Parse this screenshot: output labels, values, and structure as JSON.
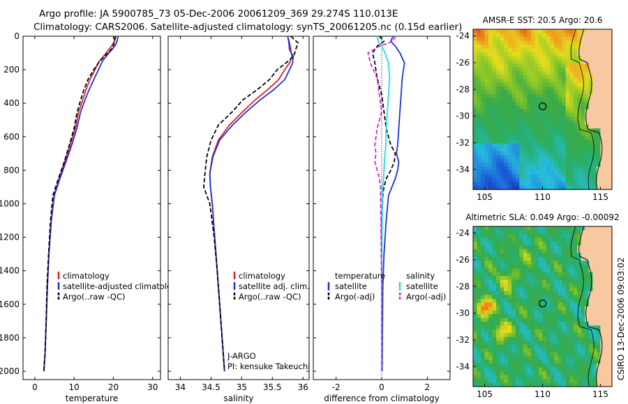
{
  "title": {
    "line1": "Argo profile: JA 5900785_73 05-Dec-2006 20061209_369 29.274S 110.013E",
    "line2": "Climatology: CARS2006. Satellite-adjusted climatology: synTS_20061205.nc (0.15d earlier)"
  },
  "side_label": "CSIRO 13-Dec-2006 09:03:02",
  "colors": {
    "red": "#dd2020",
    "blue": "#1f2ee0",
    "black": "#000000",
    "cyan": "#22dde0",
    "magenta": "#dd22dd"
  },
  "chart_data": [
    {
      "type": "line",
      "title": "",
      "xlabel": "temperature",
      "ylabel": "",
      "xlim": [
        -3,
        32
      ],
      "ylim": [
        2050,
        0
      ],
      "xticks": [
        "0",
        "10",
        "20",
        "30"
      ],
      "yticks": [
        "0",
        "200",
        "400",
        "600",
        "800",
        "1000",
        "1200",
        "1400",
        "1600",
        "1800",
        "2000"
      ],
      "legend": [
        "climatology",
        "satellite-adjusted climatolog",
        "Argo(..raw -QC)"
      ],
      "legend_position": "lower-right",
      "series": [
        {
          "name": "climatology",
          "color": "red",
          "dash": "",
          "x": [
            20.7,
            20.4,
            19.8,
            19.0,
            17.8,
            16.4,
            15.3,
            14.0,
            13.0,
            12.2,
            11.2,
            10.3,
            9.0,
            7.6,
            6.2,
            4.9,
            4.2,
            3.6,
            3.2,
            2.9,
            2.6,
            2.3
          ],
          "y": [
            0,
            25,
            50,
            75,
            110,
            150,
            200,
            260,
            320,
            380,
            450,
            550,
            650,
            750,
            850,
            950,
            1100,
            1300,
            1500,
            1700,
            1900,
            2000
          ]
        },
        {
          "name": "satellite-adjusted climatology",
          "color": "blue",
          "dash": "",
          "x": [
            21.2,
            21.0,
            20.6,
            19.8,
            18.5,
            17.2,
            16.2,
            15.0,
            13.8,
            12.8,
            11.7,
            10.7,
            9.4,
            7.9,
            6.4,
            5.0,
            4.2,
            3.6,
            3.2,
            2.9,
            2.6,
            2.3
          ],
          "y": [
            0,
            25,
            50,
            75,
            110,
            150,
            200,
            260,
            320,
            380,
            450,
            550,
            650,
            750,
            850,
            950,
            1100,
            1300,
            1500,
            1700,
            1900,
            2000
          ]
        },
        {
          "name": "Argo(..raw -QC)",
          "color": "black",
          "dash": "6,3",
          "x": [
            20.4,
            20.3,
            20.1,
            19.6,
            18.2,
            16.5,
            15.0,
            13.5,
            12.5,
            11.7,
            10.8,
            10.0,
            8.8,
            7.5,
            6.0,
            4.6,
            4.0,
            3.5,
            3.1,
            2.9,
            2.6,
            2.3
          ],
          "y": [
            0,
            25,
            50,
            75,
            110,
            150,
            200,
            260,
            320,
            380,
            450,
            550,
            650,
            750,
            850,
            950,
            1100,
            1300,
            1500,
            1700,
            1900,
            2000
          ]
        }
      ]
    },
    {
      "type": "line",
      "title": "",
      "xlabel": "salinity",
      "ylabel": "",
      "xlim": [
        33.8,
        36.1
      ],
      "ylim": [
        2050,
        0
      ],
      "xticks": [
        "34",
        "34.5",
        "35",
        "35.5",
        "36"
      ],
      "yticks": [],
      "legend": [
        "climatology",
        "satellite adj. clim.",
        "Argo(..raw -QC)"
      ],
      "legend_position": "lower-right",
      "annotations": [
        "J-ARGO",
        "PI: kensuke Takeuchi"
      ],
      "series": [
        {
          "name": "climatology",
          "color": "red",
          "dash": "",
          "x": [
            35.75,
            35.78,
            35.8,
            35.82,
            35.78,
            35.7,
            35.6,
            35.42,
            35.22,
            35.02,
            34.8,
            34.62,
            34.52,
            34.48,
            34.49,
            34.52,
            34.56,
            34.6,
            34.64,
            34.68,
            34.71,
            34.72
          ],
          "y": [
            0,
            40,
            80,
            120,
            160,
            200,
            260,
            320,
            380,
            450,
            530,
            620,
            720,
            820,
            900,
            1000,
            1200,
            1400,
            1600,
            1800,
            1950,
            2000
          ]
        },
        {
          "name": "satellite adj. clim.",
          "color": "blue",
          "dash": "",
          "x": [
            35.75,
            35.77,
            35.78,
            35.84,
            35.83,
            35.78,
            35.7,
            35.52,
            35.3,
            35.08,
            34.85,
            34.64,
            34.53,
            34.48,
            34.49,
            34.52,
            34.56,
            34.6,
            34.64,
            34.68,
            34.71,
            34.72
          ],
          "y": [
            0,
            40,
            80,
            120,
            160,
            200,
            260,
            320,
            380,
            450,
            530,
            620,
            720,
            820,
            900,
            1000,
            1200,
            1400,
            1600,
            1800,
            1950,
            2000
          ]
        },
        {
          "name": "Argo(..raw -QC)",
          "color": "black",
          "dash": "6,3",
          "x": [
            35.8,
            35.92,
            35.88,
            35.85,
            35.72,
            35.58,
            35.45,
            35.25,
            35.02,
            34.85,
            34.62,
            34.5,
            34.43,
            34.4,
            34.38,
            34.48,
            34.55,
            34.6,
            34.64,
            34.68,
            34.71,
            34.72
          ],
          "y": [
            0,
            40,
            80,
            120,
            160,
            200,
            260,
            320,
            380,
            450,
            530,
            620,
            720,
            820,
            900,
            1000,
            1200,
            1400,
            1600,
            1800,
            1950,
            2000
          ]
        }
      ]
    },
    {
      "type": "line",
      "title": "",
      "xlabel": "difference from climatology",
      "ylabel": "",
      "xlim": [
        -3,
        3
      ],
      "ylim": [
        2050,
        0
      ],
      "xticks": [
        "-2",
        "0",
        "2"
      ],
      "yticks": [],
      "legend": [
        "temperature",
        "satellite",
        "Argo(-adj)",
        "salinity",
        "satellite",
        "Argo(-adj)"
      ],
      "legend_position": "lower-center",
      "series": [
        {
          "name": "temperature satellite",
          "color": "blue",
          "dash": "",
          "x": [
            0.5,
            0.4,
            0.6,
            0.8,
            1.0,
            0.9,
            0.85,
            0.8,
            0.75,
            0.7,
            0.65,
            0.75,
            0.7,
            0.6,
            0.45,
            0.3,
            0.2,
            0.1,
            0.05,
            0.03,
            0.02
          ],
          "y": [
            0,
            30,
            60,
            100,
            160,
            250,
            350,
            450,
            550,
            650,
            700,
            750,
            800,
            850,
            900,
            950,
            1100,
            1300,
            1500,
            1800,
            2000
          ]
        },
        {
          "name": "temperature Argo(-adj)",
          "color": "black",
          "dash": "6,3",
          "x": [
            -0.1,
            0.1,
            -0.2,
            -0.4,
            -0.3,
            -0.2,
            0.0,
            0.1,
            0.2,
            0.4,
            0.6,
            0.55,
            0.4,
            0.2,
            0.1,
            0.05,
            0.0,
            0.0,
            0.0,
            0.0,
            0.0
          ],
          "y": [
            0,
            30,
            60,
            100,
            160,
            250,
            350,
            450,
            550,
            650,
            700,
            750,
            800,
            850,
            900,
            950,
            1100,
            1300,
            1500,
            1800,
            2000
          ]
        },
        {
          "name": "salinity satellite",
          "color": "cyan",
          "dash": "",
          "x": [
            -0.2,
            -0.15,
            0.0,
            0.15,
            0.3,
            0.35,
            0.3,
            0.25,
            0.2,
            0.18,
            0.15,
            0.12,
            0.1,
            0.08,
            0.05,
            0.03,
            0.02,
            0.01,
            0.0,
            0.0,
            0.0
          ],
          "y": [
            0,
            30,
            60,
            100,
            160,
            250,
            350,
            450,
            550,
            650,
            700,
            750,
            800,
            850,
            900,
            950,
            1100,
            1300,
            1500,
            1800,
            2000
          ]
        },
        {
          "name": "salinity Argo(-adj)",
          "color": "magenta",
          "dash": "6,3",
          "x": [
            0.6,
            0.5,
            -0.1,
            -0.6,
            -0.5,
            -0.2,
            -0.1,
            0.0,
            -0.2,
            -0.3,
            -0.25,
            -0.3,
            -0.2,
            -0.1,
            -0.05,
            -0.05,
            -0.03,
            -0.02,
            0.0,
            0.0,
            0.0
          ],
          "y": [
            0,
            30,
            60,
            100,
            160,
            250,
            350,
            450,
            550,
            650,
            700,
            750,
            800,
            850,
            900,
            950,
            1100,
            1300,
            1500,
            1800,
            2000
          ]
        }
      ]
    },
    {
      "type": "heatmap",
      "title": "AMSR-E SST: 20.5 Argo: 20.6",
      "xlim": [
        104,
        116
      ],
      "ylim": [
        -35.5,
        -23.5
      ],
      "xticks": [
        "105",
        "110",
        "115"
      ],
      "yticks": [
        "-24",
        "-26",
        "-28",
        "-30",
        "-32",
        "-34"
      ],
      "marker": {
        "lon": 110.013,
        "lat": -29.274
      },
      "field": "sst"
    },
    {
      "type": "heatmap",
      "title": "Altimetric SLA: 0.049 Argo: -0.00092",
      "xlim": [
        104,
        116
      ],
      "ylim": [
        -35.5,
        -23.5
      ],
      "xticks": [
        "105",
        "110",
        "115"
      ],
      "yticks": [
        "-24",
        "-26",
        "-28",
        "-30",
        "-32",
        "-34"
      ],
      "marker": {
        "lon": 110.013,
        "lat": -29.274
      },
      "field": "sla"
    }
  ]
}
